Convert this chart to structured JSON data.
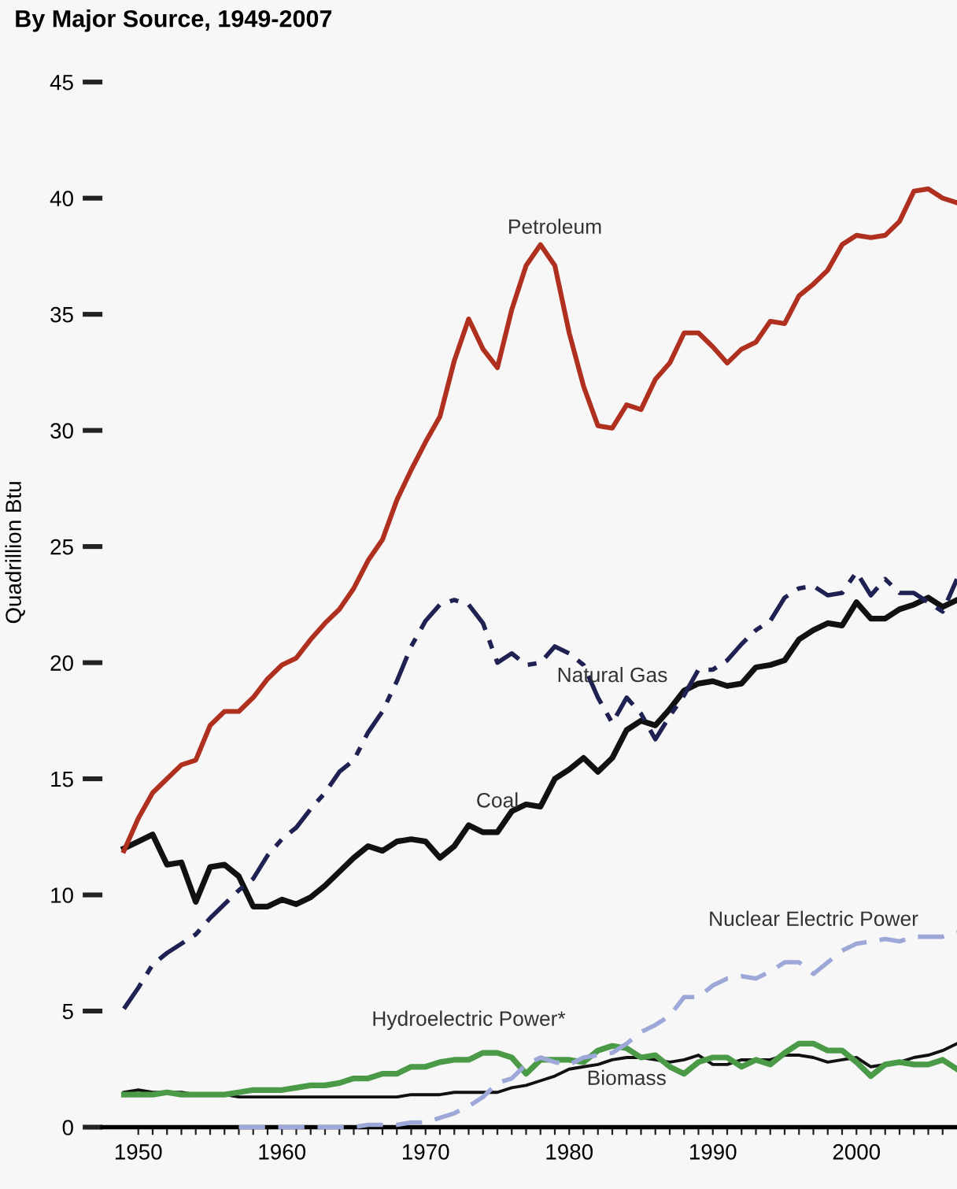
{
  "chart_data": {
    "type": "line",
    "title": "By Major Source, 1949-2007",
    "ylabel": "Quadrillion Btu",
    "x": [
      1949,
      1950,
      1951,
      1952,
      1953,
      1954,
      1955,
      1956,
      1957,
      1958,
      1959,
      1960,
      1961,
      1962,
      1963,
      1964,
      1965,
      1966,
      1967,
      1968,
      1969,
      1970,
      1971,
      1972,
      1973,
      1974,
      1975,
      1976,
      1977,
      1978,
      1979,
      1980,
      1981,
      1982,
      1983,
      1984,
      1985,
      1986,
      1987,
      1988,
      1989,
      1990,
      1991,
      1992,
      1993,
      1994,
      1995,
      1996,
      1997,
      1998,
      1999,
      2000,
      2001,
      2002,
      2003,
      2004,
      2005,
      2006,
      2007
    ],
    "series": [
      {
        "name": "Petroleum",
        "color": "#b0301f",
        "line_style": "solid",
        "values": [
          11.9,
          13.3,
          14.4,
          15.0,
          15.6,
          15.8,
          17.3,
          17.9,
          17.9,
          18.5,
          19.3,
          19.9,
          20.2,
          21.0,
          21.7,
          22.3,
          23.2,
          24.4,
          25.3,
          27.0,
          28.3,
          29.5,
          30.6,
          33.0,
          34.8,
          33.5,
          32.7,
          35.2,
          37.1,
          38.0,
          37.1,
          34.2,
          31.9,
          30.2,
          30.1,
          31.1,
          30.9,
          32.2,
          32.9,
          34.2,
          34.2,
          33.6,
          32.9,
          33.5,
          33.8,
          34.7,
          34.6,
          35.8,
          36.3,
          36.9,
          38.0,
          38.4,
          38.3,
          38.4,
          39.0,
          40.3,
          40.4,
          40.0,
          39.8
        ]
      },
      {
        "name": "Natural Gas",
        "color": "#1f2152",
        "line_style": "dashed",
        "values": [
          5.1,
          6.0,
          7.0,
          7.5,
          7.9,
          8.3,
          9.0,
          9.6,
          10.2,
          10.7,
          11.7,
          12.4,
          12.9,
          13.7,
          14.4,
          15.3,
          15.8,
          17.0,
          17.9,
          19.2,
          20.7,
          21.8,
          22.5,
          22.7,
          22.5,
          21.7,
          20.0,
          20.4,
          19.9,
          20.0,
          20.7,
          20.4,
          19.9,
          18.5,
          17.4,
          18.5,
          17.8,
          16.7,
          17.7,
          18.6,
          19.7,
          19.7,
          20.1,
          20.8,
          21.4,
          21.8,
          22.8,
          23.2,
          23.3,
          22.9,
          23.0,
          23.9,
          22.9,
          23.6,
          23.0,
          23.0,
          22.6,
          22.2,
          23.6
        ]
      },
      {
        "name": "Coal",
        "color": "#111111",
        "line_style": "solid",
        "values": [
          12.0,
          12.3,
          12.6,
          11.3,
          11.4,
          9.7,
          11.2,
          11.3,
          10.8,
          9.5,
          9.5,
          9.8,
          9.6,
          9.9,
          10.4,
          11.0,
          11.6,
          12.1,
          11.9,
          12.3,
          12.4,
          12.3,
          11.6,
          12.1,
          13.0,
          12.7,
          12.7,
          13.6,
          13.9,
          13.8,
          15.0,
          15.4,
          15.9,
          15.3,
          15.9,
          17.1,
          17.5,
          17.3,
          18.0,
          18.8,
          19.1,
          19.2,
          19.0,
          19.1,
          19.8,
          19.9,
          20.1,
          21.0,
          21.4,
          21.7,
          21.6,
          22.6,
          21.9,
          21.9,
          22.3,
          22.5,
          22.8,
          22.4,
          22.7
        ]
      },
      {
        "name": "Nuclear Electric Power",
        "color": "#9ea8d8",
        "line_style": "dashed",
        "values": [
          null,
          null,
          null,
          null,
          null,
          null,
          null,
          null,
          0,
          0,
          0,
          0,
          0,
          0,
          0,
          0,
          0,
          0.1,
          0.1,
          0.1,
          0.2,
          0.2,
          0.4,
          0.6,
          0.9,
          1.3,
          1.9,
          2.1,
          2.7,
          3.0,
          2.8,
          2.7,
          3.0,
          3.1,
          3.2,
          3.6,
          4.1,
          4.4,
          4.8,
          5.6,
          5.6,
          6.1,
          6.4,
          6.5,
          6.4,
          6.7,
          7.1,
          7.1,
          6.6,
          7.1,
          7.6,
          7.9,
          8.0,
          8.1,
          8.0,
          8.2,
          8.2,
          8.2,
          8.4
        ]
      },
      {
        "name": "Hydroelectric Power*",
        "color": "#4b9a48",
        "line_style": "solid",
        "values": [
          1.4,
          1.4,
          1.4,
          1.5,
          1.4,
          1.4,
          1.4,
          1.4,
          1.5,
          1.6,
          1.6,
          1.6,
          1.7,
          1.8,
          1.8,
          1.9,
          2.1,
          2.1,
          2.3,
          2.3,
          2.6,
          2.6,
          2.8,
          2.9,
          2.9,
          3.2,
          3.2,
          3.0,
          2.3,
          2.9,
          2.9,
          2.9,
          2.8,
          3.3,
          3.5,
          3.4,
          3.0,
          3.1,
          2.6,
          2.3,
          2.8,
          3.0,
          3.0,
          2.6,
          2.9,
          2.7,
          3.2,
          3.6,
          3.6,
          3.3,
          3.3,
          2.8,
          2.2,
          2.7,
          2.8,
          2.7,
          2.7,
          2.9,
          2.5
        ]
      },
      {
        "name": "Biomass",
        "color": "#111111",
        "line_style": "solid",
        "values": [
          1.5,
          1.6,
          1.5,
          1.5,
          1.5,
          1.4,
          1.4,
          1.4,
          1.3,
          1.3,
          1.3,
          1.3,
          1.3,
          1.3,
          1.3,
          1.3,
          1.3,
          1.3,
          1.3,
          1.3,
          1.4,
          1.4,
          1.4,
          1.5,
          1.5,
          1.5,
          1.5,
          1.7,
          1.8,
          2.0,
          2.2,
          2.5,
          2.6,
          2.7,
          2.9,
          3.0,
          3.0,
          2.9,
          2.8,
          2.9,
          3.1,
          2.7,
          2.7,
          2.9,
          2.9,
          2.9,
          3.1,
          3.1,
          3.0,
          2.8,
          2.9,
          3.0,
          2.6,
          2.7,
          2.8,
          3.0,
          3.1,
          3.3,
          3.6
        ]
      }
    ],
    "xlim": [
      1947.5,
      2007
    ],
    "ylim": [
      0,
      45
    ],
    "yticks": [
      0,
      5,
      10,
      15,
      20,
      25,
      30,
      35,
      40,
      45
    ],
    "xticks": [
      1950,
      {
        "value": 1951,
        "label": null
      },
      {
        "value": 1952,
        "label": null
      },
      {
        "value": 1953,
        "label": null
      },
      {
        "value": 1954,
        "label": null
      },
      {
        "value": 1955,
        "label": null
      },
      {
        "value": 1956,
        "label": null
      },
      {
        "value": 1957,
        "label": null
      },
      {
        "value": 1958,
        "label": null
      },
      {
        "value": 1959,
        "label": null
      },
      1960,
      {
        "value": 1961,
        "label": null
      },
      {
        "value": 1962,
        "label": null
      },
      {
        "value": 1963,
        "label": null
      },
      {
        "value": 1964,
        "label": null
      },
      {
        "value": 1965,
        "label": null
      },
      {
        "value": 1966,
        "label": null
      },
      {
        "value": 1967,
        "label": null
      },
      {
        "value": 1968,
        "label": null
      },
      {
        "value": 1969,
        "label": null
      },
      1970,
      {
        "value": 1971,
        "label": null
      },
      {
        "value": 1972,
        "label": null
      },
      {
        "value": 1973,
        "label": null
      },
      {
        "value": 1974,
        "label": null
      },
      {
        "value": 1975,
        "label": null
      },
      {
        "value": 1976,
        "label": null
      },
      {
        "value": 1977,
        "label": null
      },
      {
        "value": 1978,
        "label": null
      },
      {
        "value": 1979,
        "label": null
      },
      1980,
      {
        "value": 1981,
        "label": null
      },
      {
        "value": 1982,
        "label": null
      },
      {
        "value": 1983,
        "label": null
      },
      {
        "value": 1984,
        "label": null
      },
      {
        "value": 1985,
        "label": null
      },
      {
        "value": 1986,
        "label": null
      },
      {
        "value": 1987,
        "label": null
      },
      {
        "value": 1988,
        "label": null
      },
      {
        "value": 1989,
        "label": null
      },
      1990,
      {
        "value": 1991,
        "label": null
      },
      {
        "value": 1992,
        "label": null
      },
      {
        "value": 1993,
        "label": null
      },
      {
        "value": 1994,
        "label": null
      },
      {
        "value": 1995,
        "label": null
      },
      {
        "value": 1996,
        "label": null
      },
      {
        "value": 1997,
        "label": null
      },
      {
        "value": 1998,
        "label": null
      },
      {
        "value": 1999,
        "label": null
      },
      2000,
      {
        "value": 2001,
        "label": null
      },
      {
        "value": 2002,
        "label": null
      },
      {
        "value": 2003,
        "label": null
      },
      {
        "value": 2004,
        "label": null
      },
      {
        "value": 2005,
        "label": null
      },
      {
        "value": 2006,
        "label": null
      }
    ],
    "grid": false,
    "legend": false,
    "marker": "none"
  }
}
